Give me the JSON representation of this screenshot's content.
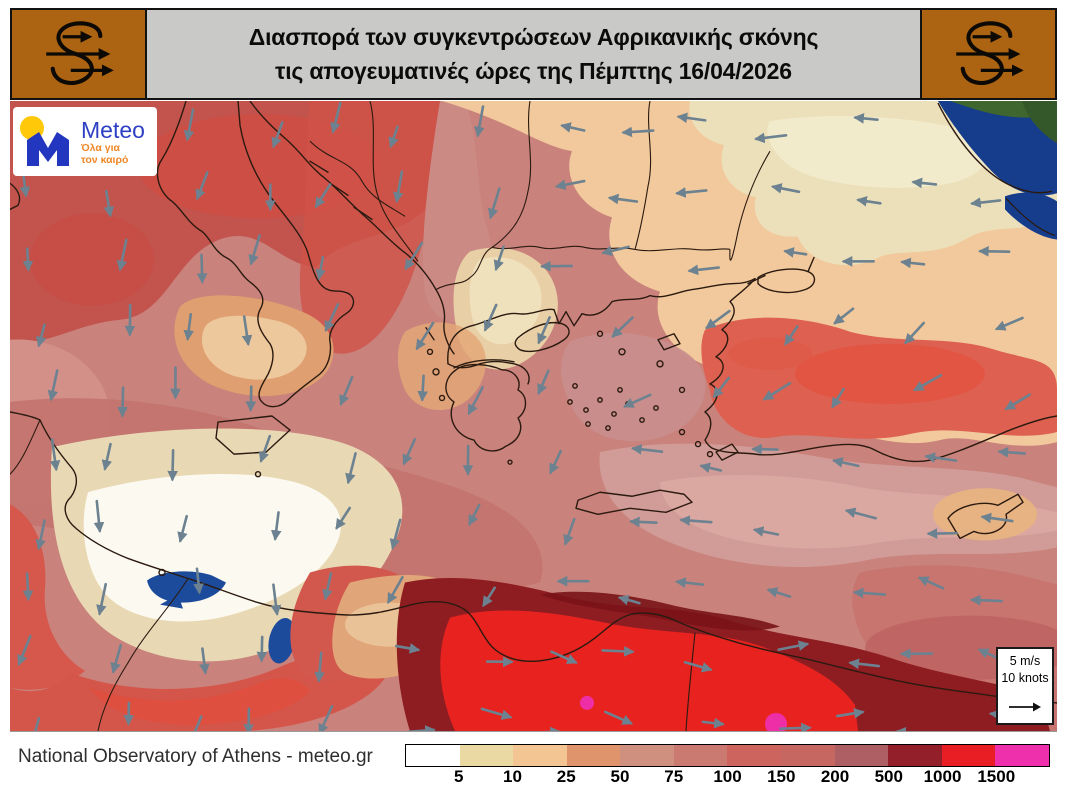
{
  "header": {
    "title_line1": "Διασπορά των συγκεντρώσεων Αφρικανικής σκόνης",
    "title_line2": "τις απογευματινές ώρες της Πέμπτης 16/04/2026",
    "title_bg": "#c9c9c7",
    "logo_box_color": "#ac6312"
  },
  "meteo_logo": {
    "brand": "Meteo",
    "tagline_line1": "Όλα για",
    "tagline_line2": "τον καιρό",
    "brand_color": "#2e3fc4",
    "tagline_color": "#ee8727",
    "sun_color": "#ffc90a",
    "m_color": "#2336c0"
  },
  "wind_legend": {
    "line1": "5 m/s",
    "line2": "10 knots"
  },
  "footer": {
    "credit": "National Observatory of Athens - meteo.gr"
  },
  "map": {
    "wind_arrow_color": "#6d8290",
    "coastline_color": "#2b1a10",
    "black_sea_color": "#163c8c",
    "lake_color": "#1d4b9c"
  },
  "chart_data": {
    "type": "heatmap",
    "title": "Διασπορά των συγκεντρώσεων Αφρικανικής σκόνης τις απογευματινές ώρες της Πέμπτης 16/04/2026",
    "region": "Eastern Mediterranean",
    "legend_position": "bottom",
    "colorbar": {
      "orientation": "horizontal",
      "tick_labels": [
        "5",
        "10",
        "25",
        "50",
        "75",
        "100",
        "150",
        "200",
        "500",
        "1000",
        "1500"
      ],
      "segment_colors": [
        "#ffffff",
        "#ead9a3",
        "#f2c593",
        "#df946b",
        "#d0907f",
        "#cb7a71",
        "#cd655e",
        "#c76762",
        "#ae5f64",
        "#921f29",
        "#e91e25",
        "#ee30ad"
      ]
    },
    "wind_reference": {
      "speed": "5 m/s",
      "knots": "10 knots"
    }
  }
}
